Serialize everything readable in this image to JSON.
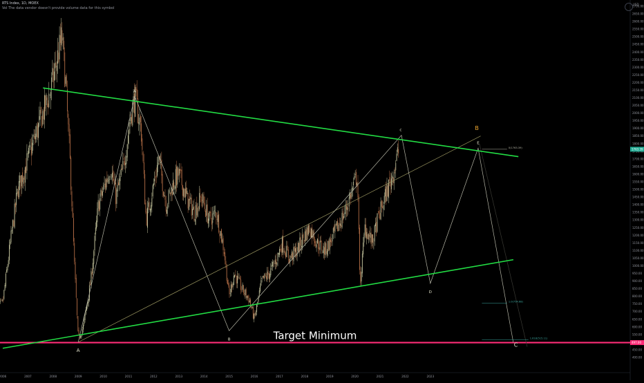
{
  "header": {
    "title": "RTS Index, 1D, MOEX",
    "volume_note": "Vol  The data vendor doesn't provide volume data for this symbol"
  },
  "price_scale": {
    "currency": "USD"
  },
  "colors": {
    "background": "#000000",
    "candle_up": "#c8c8a0",
    "candle_down": "#b46e46",
    "trend_channel": "#22dd44",
    "target_line": "#ff2d78",
    "wave_lines": "#b8b8a8",
    "wave_labels": "#e8e8d0",
    "wave_label_orange": "#f0a830",
    "fib_teal": "#3aa8a0"
  },
  "chart_data": {
    "type": "candlestick",
    "title": "RTS Index, 1D, MOEX",
    "xlabel": "",
    "ylabel": "",
    "x_ticks": [
      "2006",
      "2007",
      "2008",
      "2009",
      "2010",
      "2011",
      "2012",
      "2013",
      "2014",
      "2015",
      "2016",
      "2017",
      "2018",
      "2019",
      "2020",
      "2021",
      "2022",
      "2023"
    ],
    "y_ticks": [
      400,
      450,
      500,
      550,
      600,
      650,
      700,
      750,
      800,
      850,
      900,
      950,
      1000,
      1050,
      1100,
      1150,
      1200,
      1250,
      1300,
      1350,
      1400,
      1450,
      1500,
      1550,
      1600,
      1650,
      1700,
      1750,
      1800,
      1850,
      1900,
      1950,
      2000,
      2050,
      2100,
      2150,
      2200,
      2250,
      2300,
      2350,
      2400,
      2450,
      2500,
      2550,
      2600,
      2650,
      2700
    ],
    "ylim": [
      400,
      2700
    ],
    "xlim": [
      2006.0,
      2025.0
    ],
    "price_path": [
      [
        2005.7,
        700
      ],
      [
        2006.0,
        760
      ],
      [
        2006.3,
        1150
      ],
      [
        2006.6,
        1500
      ],
      [
        2006.8,
        1600
      ],
      [
        2007.0,
        1700
      ],
      [
        2007.3,
        1850
      ],
      [
        2007.6,
        2000
      ],
      [
        2007.9,
        2150
      ],
      [
        2008.1,
        2300
      ],
      [
        2008.35,
        2500
      ],
      [
        2008.5,
        2200
      ],
      [
        2008.7,
        1600
      ],
      [
        2008.85,
        1000
      ],
      [
        2009.0,
        520
      ],
      [
        2009.2,
        600
      ],
      [
        2009.5,
        900
      ],
      [
        2009.8,
        1400
      ],
      [
        2010.0,
        1500
      ],
      [
        2010.3,
        1650
      ],
      [
        2010.5,
        1450
      ],
      [
        2010.8,
        1650
      ],
      [
        2011.1,
        2000
      ],
      [
        2011.25,
        2100
      ],
      [
        2011.5,
        1900
      ],
      [
        2011.7,
        1300
      ],
      [
        2011.9,
        1450
      ],
      [
        2012.2,
        1700
      ],
      [
        2012.5,
        1400
      ],
      [
        2012.8,
        1550
      ],
      [
        2013.0,
        1600
      ],
      [
        2013.3,
        1450
      ],
      [
        2013.6,
        1350
      ],
      [
        2013.9,
        1450
      ],
      [
        2014.2,
        1300
      ],
      [
        2014.5,
        1350
      ],
      [
        2014.8,
        1100
      ],
      [
        2015.0,
        800
      ],
      [
        2015.2,
        950
      ],
      [
        2015.5,
        850
      ],
      [
        2015.8,
        780
      ],
      [
        2016.0,
        650
      ],
      [
        2016.3,
        900
      ],
      [
        2016.6,
        950
      ],
      [
        2016.9,
        1050
      ],
      [
        2017.1,
        1150
      ],
      [
        2017.4,
        1050
      ],
      [
        2017.7,
        1100
      ],
      [
        2018.0,
        1200
      ],
      [
        2018.2,
        1250
      ],
      [
        2018.5,
        1150
      ],
      [
        2018.8,
        1100
      ],
      [
        2019.0,
        1150
      ],
      [
        2019.3,
        1250
      ],
      [
        2019.6,
        1350
      ],
      [
        2019.9,
        1500
      ],
      [
        2020.1,
        1600
      ],
      [
        2020.2,
        870
      ],
      [
        2020.4,
        1250
      ],
      [
        2020.7,
        1150
      ],
      [
        2020.9,
        1300
      ],
      [
        2021.2,
        1450
      ],
      [
        2021.5,
        1600
      ],
      [
        2021.75,
        1760
      ]
    ],
    "drawings": {
      "upper_channel": {
        "from": [
          2007.6,
          2165
        ],
        "to": [
          2026.5,
          1715
        ]
      },
      "lower_channel": {
        "from": [
          2006.0,
          460
        ],
        "to": [
          2026.3,
          1040
        ]
      },
      "target_line": {
        "value": 497,
        "label": "Target Minimum"
      },
      "wave_abcde": [
        [
          "A",
          2009.0,
          500
        ],
        [
          "A",
          2011.25,
          2110
        ],
        [
          "B",
          2015.0,
          575
        ],
        [
          "C",
          2021.85,
          1855
        ],
        [
          "D",
          2023.0,
          885
        ],
        [
          "E",
          2024.9,
          1770
        ]
      ],
      "wave_path": [
        [
          2009.0,
          500
        ],
        [
          2011.25,
          2110
        ],
        [
          2015.0,
          575
        ],
        [
          2021.85,
          1855
        ],
        [
          2023.0,
          885
        ],
        [
          2024.9,
          1770
        ],
        [
          2026.3,
          497
        ]
      ],
      "rising_line": {
        "from": [
          2009.0,
          500
        ],
        "to": [
          2025.0,
          1850
        ]
      },
      "wave_fade": {
        "from": [
          2024.95,
          1800
        ],
        "to": [
          2026.85,
          470
        ]
      },
      "big_wave_labels": [
        [
          "B",
          2024.85,
          1890
        ],
        [
          "C",
          2026.4,
          470
        ]
      ],
      "fib_markers": [
        {
          "label": "0(1763.39)",
          "y": 1763.39,
          "x_from": 2025.05,
          "x_to": 2026.05,
          "color": "wave_lines"
        },
        {
          "label": "1.0(754.68)",
          "y": 754.68,
          "x_from": 2025.05,
          "x_to": 2026.05,
          "color": "fib_teal"
        },
        {
          "label": "1.618(515.11)",
          "y": 515.11,
          "x_from": 2025.05,
          "x_to": 2026.9,
          "color": "fib_teal"
        }
      ],
      "last_price": 1763.39
    }
  }
}
